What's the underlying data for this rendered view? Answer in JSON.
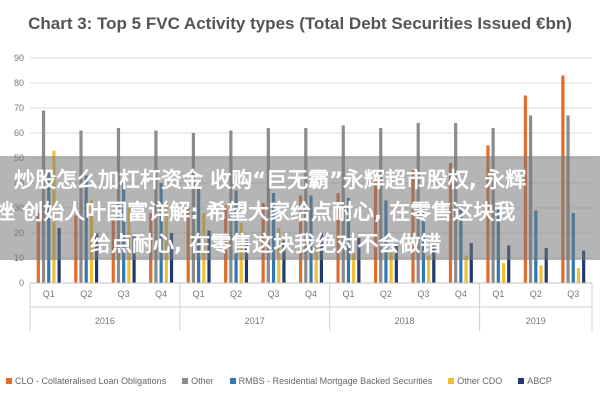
{
  "chart_data": {
    "type": "bar",
    "title": "Chart 3: Top 5 FVC Activity types (Total Debt Securities Issued €bn)",
    "ylim": [
      0,
      90
    ],
    "yticks": [
      0,
      10,
      20,
      30,
      40,
      50,
      60,
      70,
      80,
      90
    ],
    "grid": true,
    "legend_position": "bottom",
    "groups": [
      {
        "label": "2016",
        "quarters": [
          "Q1",
          "Q2",
          "Q3",
          "Q4"
        ]
      },
      {
        "label": "2017",
        "quarters": [
          "Q1",
          "Q2",
          "Q3",
          "Q4"
        ]
      },
      {
        "label": "2018",
        "quarters": [
          "Q1",
          "Q2",
          "Q3",
          "Q4"
        ]
      },
      {
        "label": "2019",
        "quarters": [
          "Q1",
          "Q2",
          "Q3"
        ]
      }
    ],
    "categories": [
      "2016 Q1",
      "2016 Q2",
      "2016 Q3",
      "2016 Q4",
      "2017 Q1",
      "2017 Q2",
      "2017 Q3",
      "2017 Q4",
      "2018 Q1",
      "2018 Q2",
      "2018 Q3",
      "2018 Q4",
      "2019 Q1",
      "2019 Q2",
      "2019 Q3"
    ],
    "series": [
      {
        "name": "CLO - Collateralised Loan Obligations",
        "color": "#e46c2a",
        "values": [
          28,
          27,
          26,
          28,
          30,
          31,
          32,
          35,
          36,
          42,
          45,
          48,
          55,
          75,
          83
        ]
      },
      {
        "name": "Other",
        "color": "#8c8c8c",
        "values": [
          69,
          61,
          62,
          61,
          60,
          61,
          62,
          62,
          63,
          62,
          64,
          64,
          62,
          67,
          67
        ]
      },
      {
        "name": "RMBS - Residential Mortgage Backed Securities",
        "color": "#2f78b4",
        "values": [
          44,
          43,
          41,
          40,
          38,
          37,
          36,
          35,
          34,
          33,
          32,
          31,
          30,
          29,
          28
        ]
      },
      {
        "name": "Other CDO",
        "color": "#f2be33",
        "values": [
          53,
          33,
          31,
          32,
          28,
          24,
          22,
          15,
          12,
          12,
          11,
          11,
          8,
          7,
          6
        ]
      },
      {
        "name": "ABCP",
        "color": "#1f3a6e",
        "values": [
          22,
          20,
          19,
          20,
          21,
          18,
          17,
          20,
          18,
          16,
          15,
          16,
          15,
          14,
          13
        ]
      }
    ]
  },
  "overlay": {
    "line1": "炒股怎么加杠杆资金 收购“巨无霸”永辉超市股权, 永辉",
    "line2": "挫 创始人叶国富详解: 希望大家给点耐心, 在零售这块我",
    "line3": "给点耐心, 在零售这块我绝对不会做错"
  }
}
